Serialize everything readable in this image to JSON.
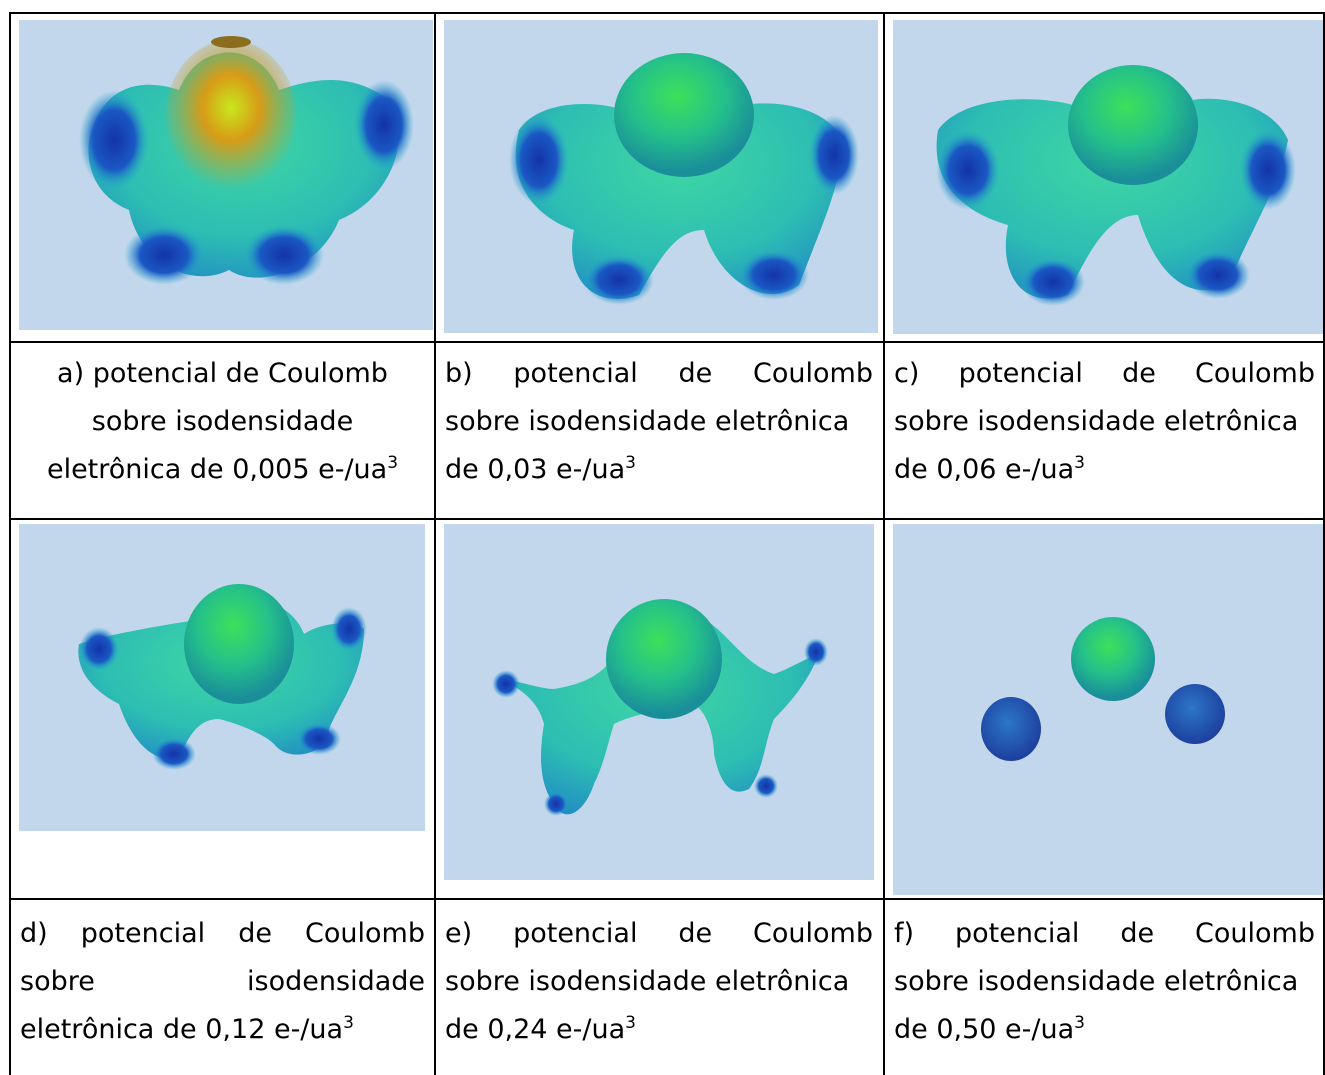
{
  "cells": [
    {
      "id": "a",
      "lines": [
        {
          "align": "center",
          "words": [
            "a) potencial de Coulomb"
          ]
        },
        {
          "align": "center",
          "words": [
            "sobre isodensidade"
          ]
        },
        {
          "align": "center",
          "words": [
            "eletrônica de 0,005 e-/ua"
          ],
          "sup": "3"
        }
      ]
    },
    {
      "id": "b",
      "lines": [
        {
          "align": "justify",
          "words": [
            "b)",
            "potencial",
            "de",
            "Coulomb"
          ]
        },
        {
          "align": "left",
          "words": [
            "sobre isodensidade eletrônica"
          ]
        },
        {
          "align": "left",
          "words": [
            "de 0,03 e-/ua"
          ],
          "sup": "3"
        }
      ]
    },
    {
      "id": "c",
      "lines": [
        {
          "align": "justify",
          "words": [
            "c)",
            "potencial",
            "de",
            "Coulomb"
          ]
        },
        {
          "align": "left",
          "words": [
            "sobre isodensidade eletrônica"
          ]
        },
        {
          "align": "left",
          "words": [
            "de 0,06 e-/ua"
          ],
          "sup": "3"
        }
      ]
    },
    {
      "id": "d",
      "lines": [
        {
          "align": "justify",
          "words": [
            "d)",
            "potencial",
            "de",
            "Coulomb"
          ]
        },
        {
          "align": "justify",
          "words": [
            "sobre",
            "isodensidade"
          ]
        },
        {
          "align": "left",
          "words": [
            "eletrônica de 0,12 e-/ua"
          ],
          "sup": "3"
        }
      ]
    },
    {
      "id": "e",
      "lines": [
        {
          "align": "justify",
          "words": [
            "e)",
            "potencial",
            "de",
            "Coulomb"
          ]
        },
        {
          "align": "left",
          "words": [
            "sobre isodensidade eletrônica"
          ]
        },
        {
          "align": "left",
          "words": [
            "de 0,24 e-/ua"
          ],
          "sup": "3"
        }
      ]
    },
    {
      "id": "f",
      "lines": [
        {
          "align": "justify",
          "words": [
            "f)",
            "potencial",
            "de",
            "Coulomb"
          ]
        },
        {
          "align": "left",
          "words": [
            "sobre isodensidade eletrônica"
          ]
        },
        {
          "align": "left",
          "words": [
            "de 0,50 e-/ua"
          ],
          "sup": "3"
        }
      ]
    }
  ],
  "colors": {
    "background": "#c2d7ec",
    "high": "#e1a211",
    "mid": "#3fcf53",
    "low": "#1e3fa6"
  }
}
